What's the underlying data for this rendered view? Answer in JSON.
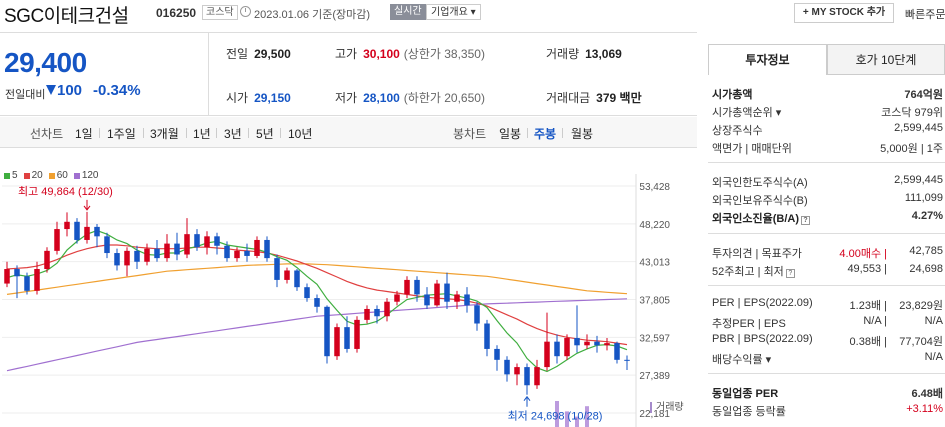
{
  "header": {
    "stock_name": "SGC이테크건설",
    "stock_code": "016250",
    "market": "코스닥",
    "date": "2023.01.06 기준(장마감)",
    "realtime": "실시간",
    "company_info": "기업개요 ▾",
    "my_stock": "+ MY STOCK 추가",
    "quick_link": "빠른주문"
  },
  "summary": {
    "price": "29,400",
    "diff_label": "전일대비",
    "diff_value": "100",
    "diff_rate": "-0.34%",
    "prev_close_label": "전일",
    "prev_close": "29,500",
    "high_label": "고가",
    "high": "30,100",
    "upper_limit": "(상한가 38,350)",
    "volume_label": "거래량",
    "volume": "13,069",
    "open_label": "시가",
    "open": "29,150",
    "low_label": "저가",
    "low": "28,100",
    "lower_limit": "(하한가 20,650)",
    "amount_label": "거래대금",
    "amount": "379 백만"
  },
  "chart_tabs": {
    "line_label": "선차트",
    "periods": [
      "1일",
      "1주일",
      "3개월",
      "1년",
      "3년",
      "5년",
      "10년"
    ],
    "candle_label": "봉차트",
    "candles": [
      "일봉",
      "주봉",
      "월봉"
    ],
    "active_candle": "주봉"
  },
  "colors": {
    "up": "#d4001c",
    "down": "#1555c4",
    "ma5": "#3fae3f",
    "ma20": "#e04040",
    "ma60": "#f0a030",
    "ma120": "#a070d0"
  },
  "chart_data": {
    "type": "candlestick",
    "legend": [
      "5",
      "20",
      "60",
      "120"
    ],
    "y_ticks": [
      "53,428",
      "48,220",
      "43,013",
      "37,805",
      "32,597",
      "27,389",
      "22,181"
    ],
    "ylim": [
      22181,
      53428
    ],
    "high_annotation": "최고 49,864 (12/30)",
    "low_annotation": "최저 24,698 (10/28)",
    "volume_label": "거래량",
    "candles": [
      [
        40000,
        42000,
        39500,
        43000
      ],
      [
        42000,
        41000,
        38000,
        42500
      ],
      [
        41000,
        39000,
        38500,
        41500
      ],
      [
        39000,
        42000,
        38500,
        43000
      ],
      [
        42000,
        44500,
        41500,
        45000
      ],
      [
        44500,
        47500,
        44000,
        48500
      ],
      [
        47500,
        48500,
        46500,
        49800
      ],
      [
        48500,
        46000,
        45500,
        49000
      ],
      [
        46000,
        47800,
        45500,
        49864
      ],
      [
        47800,
        46500,
        45000,
        48200
      ],
      [
        46500,
        44200,
        43500,
        47000
      ],
      [
        44200,
        42500,
        41800,
        44800
      ],
      [
        42500,
        44500,
        41000,
        45000
      ],
      [
        44500,
        43000,
        42000,
        45200
      ],
      [
        43000,
        44800,
        42500,
        45500
      ],
      [
        44800,
        43500,
        43000,
        46000
      ],
      [
        43500,
        45500,
        43000,
        46800
      ],
      [
        45500,
        44000,
        43200,
        47000
      ],
      [
        44000,
        46800,
        43500,
        49000
      ],
      [
        46800,
        45000,
        44500,
        47500
      ],
      [
        45000,
        46500,
        44000,
        47200
      ],
      [
        46500,
        45200,
        44000,
        47000
      ],
      [
        45200,
        43500,
        43000,
        45800
      ],
      [
        43500,
        44500,
        43000,
        45000
      ],
      [
        44500,
        43800,
        43000,
        45500
      ],
      [
        43800,
        46000,
        43500,
        46500
      ],
      [
        46000,
        43500,
        43000,
        46500
      ],
      [
        43500,
        40500,
        39500,
        44000
      ],
      [
        40500,
        41800,
        40000,
        42200
      ],
      [
        41800,
        39500,
        39000,
        42000
      ],
      [
        39500,
        38000,
        37500,
        40000
      ],
      [
        38000,
        36800,
        36000,
        38500
      ],
      [
        36800,
        30000,
        29000,
        37000
      ],
      [
        30000,
        34000,
        29500,
        34500
      ],
      [
        34000,
        31000,
        30500,
        35500
      ],
      [
        31000,
        35000,
        30500,
        35500
      ],
      [
        35000,
        36500,
        34500,
        37000
      ],
      [
        36500,
        35500,
        34500,
        37000
      ],
      [
        35500,
        37500,
        34800,
        38000
      ],
      [
        37500,
        38500,
        37000,
        39000
      ],
      [
        38500,
        40500,
        38000,
        41000
      ],
      [
        40500,
        38500,
        37500,
        41000
      ],
      [
        38500,
        37000,
        36500,
        39500
      ],
      [
        37000,
        40000,
        36800,
        40500
      ],
      [
        40000,
        37500,
        36500,
        41500
      ],
      [
        37500,
        38500,
        36500,
        39000
      ],
      [
        38500,
        37000,
        36000,
        39500
      ],
      [
        37000,
        34500,
        33500,
        37500
      ],
      [
        34500,
        31000,
        30000,
        35000
      ],
      [
        31000,
        29500,
        28000,
        31500
      ],
      [
        29500,
        27500,
        26500,
        30000
      ],
      [
        27500,
        28500,
        26000,
        29000
      ],
      [
        28500,
        26000,
        24698,
        29000
      ],
      [
        26000,
        28500,
        25500,
        29500
      ],
      [
        28500,
        32000,
        28000,
        36000
      ],
      [
        32000,
        30000,
        29000,
        33000
      ],
      [
        30000,
        32500,
        29500,
        33000
      ],
      [
        32500,
        31500,
        30500,
        37000
      ],
      [
        31500,
        32000,
        31000,
        33000
      ],
      [
        32000,
        31500,
        30500,
        32800
      ],
      [
        31500,
        31800,
        30800,
        32500
      ],
      [
        31800,
        29500,
        29000,
        32000
      ],
      [
        29500,
        29400,
        28100,
        30100
      ]
    ],
    "ma5": [
      40800,
      41200,
      41000,
      41300,
      41800,
      42800,
      44600,
      45800,
      46800,
      47300,
      46800,
      46000,
      45500,
      44600,
      44000,
      43900,
      44200,
      44200,
      44800,
      45100,
      45600,
      45800,
      45300,
      45100,
      44900,
      44700,
      44300,
      43700,
      43200,
      42200,
      41000,
      39900,
      37900,
      36300,
      34800,
      34300,
      34400,
      34800,
      35700,
      36800,
      37800,
      38100,
      38400,
      38500,
      38600,
      38300,
      38000,
      37600,
      36700,
      34900,
      33200,
      31800,
      29700,
      28400,
      27900,
      28600,
      29500,
      30400,
      31000,
      31500,
      31600,
      31400,
      30900
    ],
    "ma20": [
      42000,
      42100,
      42200,
      42400,
      42800,
      43300,
      43900,
      44400,
      44800,
      45100,
      45300,
      45300,
      45200,
      45000,
      44900,
      44800,
      44800,
      44800,
      44900,
      45000,
      45000,
      44900,
      44800,
      44600,
      44500,
      44400,
      44200,
      43900,
      43500,
      43100,
      42600,
      42100,
      41500,
      40900,
      40300,
      39800,
      39400,
      39100,
      38900,
      38700,
      38500,
      38300,
      38100,
      38000,
      37900,
      37800,
      37600,
      37300,
      36900,
      36300,
      35700,
      35100,
      34400,
      33800,
      33300,
      32900,
      32600,
      32400,
      32200,
      32100,
      32000,
      31800,
      31600
    ],
    "ma60": [
      38500,
      38700,
      38900,
      39100,
      39300,
      39500,
      39700,
      39900,
      40100,
      40300,
      40500,
      40700,
      40900,
      41100,
      41300,
      41500,
      41700,
      41800,
      41900,
      42000,
      42100,
      42200,
      42300,
      42400,
      42500,
      42550,
      42600,
      42650,
      42700,
      42700,
      42700,
      42650,
      42600,
      42500,
      42400,
      42300,
      42200,
      42100,
      42000,
      41900,
      41800,
      41700,
      41600,
      41500,
      41400,
      41300,
      41200,
      41100,
      41000,
      40800,
      40600,
      40400,
      40200,
      40000,
      39800,
      39600,
      39400,
      39200,
      39000,
      38900,
      38800,
      38700,
      38600
    ],
    "ma120": [
      28000,
      28300,
      28600,
      28900,
      29200,
      29500,
      29800,
      30100,
      30400,
      30700,
      31000,
      31300,
      31600,
      31900,
      32100,
      32300,
      32500,
      32700,
      32900,
      33100,
      33300,
      33500,
      33700,
      33900,
      34100,
      34300,
      34500,
      34700,
      34900,
      35100,
      35300,
      35500,
      35600,
      35700,
      35800,
      35900,
      36000,
      36100,
      36200,
      36300,
      36400,
      36500,
      36600,
      36700,
      36800,
      36900,
      37000,
      37100,
      37200,
      37250,
      37300,
      37350,
      37400,
      37450,
      37500,
      37550,
      37600,
      37650,
      37700,
      37750,
      37800,
      37850,
      37900
    ],
    "volume": [
      0,
      0,
      0,
      0,
      0,
      0,
      0,
      0,
      0,
      0,
      0,
      0,
      0,
      0,
      0,
      0,
      0,
      0,
      0,
      0,
      0,
      0,
      0,
      0,
      0,
      0,
      0,
      0,
      0,
      0,
      0,
      0,
      0,
      0,
      0,
      0,
      0,
      0,
      0,
      0,
      0,
      0,
      0,
      0,
      0,
      0,
      0,
      0,
      0,
      0,
      0,
      0,
      0,
      0,
      0,
      10,
      6,
      4,
      8,
      0,
      0,
      0,
      0
    ]
  },
  "right_panel": {
    "tab_invest": "투자정보",
    "tab_quote": "호가 10단계",
    "rows": [
      {
        "k": "시가총액",
        "v": "764억원",
        "bold": true
      },
      {
        "k": "시가총액순위 ▾",
        "v": "코스닥 979위"
      },
      {
        "k": "상장주식수",
        "v": "2,599,445"
      },
      {
        "k": "액면가 | 매매단위",
        "v": "5,000원 | 1주"
      },
      {
        "k": "외국인한도주식수(A)",
        "v": "2,599,445"
      },
      {
        "k": "외국인보유주식수(B)",
        "v": "111,099"
      },
      {
        "k": "외국인소진율(B/A)",
        "v": "4.27%",
        "bold": true
      },
      {
        "k": "투자의견 | 목표주가",
        "mid": "4.00매수 |",
        "v": "42,785"
      },
      {
        "k": "52주최고 | 최저",
        "mid": "49,553 |",
        "v": "24,698"
      },
      {
        "k": "PER | EPS(2022.09)",
        "mid": "1.23배 |",
        "v": "23,829원"
      },
      {
        "k": "추정PER | EPS",
        "mid": "N/A |",
        "v": "N/A"
      },
      {
        "k": "PBR | BPS(2022.09)",
        "mid": "0.38배 |",
        "v": "77,704원"
      },
      {
        "k": "배당수익률 ▾",
        "v": "N/A"
      },
      {
        "k": "동일업종 PER",
        "v": "6.48배",
        "bold": true
      },
      {
        "k": "동일업종 등락률",
        "v": "+3.11%"
      }
    ]
  }
}
